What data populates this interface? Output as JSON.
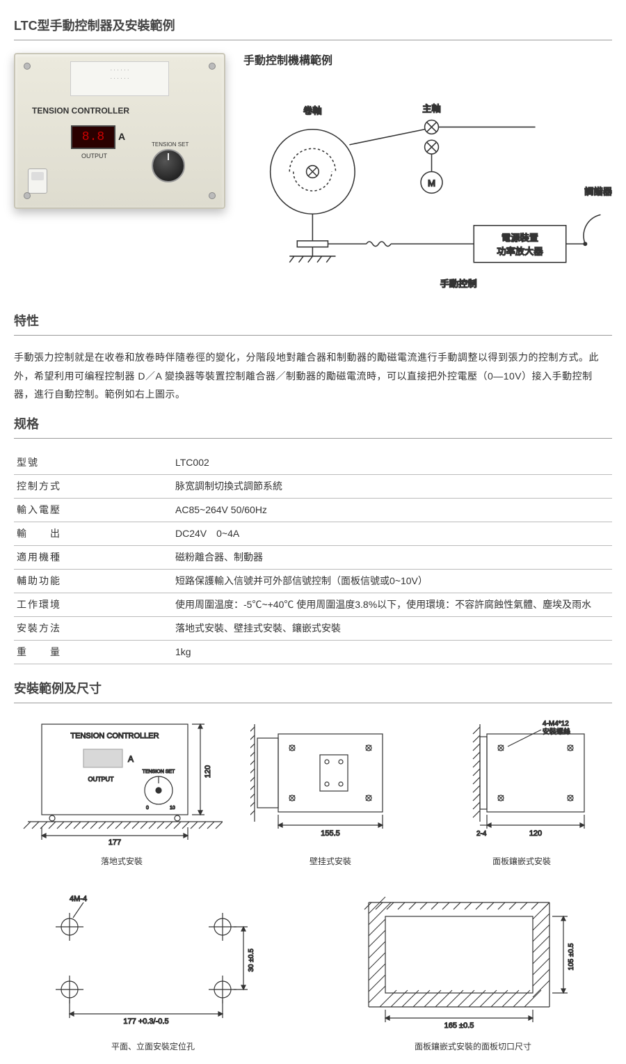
{
  "page_title": "LTC型手動控制器及安裝範例",
  "section_features": "特性",
  "section_spec": "规格",
  "section_install": "安裝範例及尺寸",
  "diagram_title": "手動控制機構範例",
  "body_text": "手動張力控制就是在收卷和放卷時伴隨卷徑的變化，分階段地對離合器和制動器的勵磁電流進行手動調整以得到張力的控制方式。此外，希望利用可编程控制器 D／A 變換器等裝置控制離合器／制動器的勵磁電流時，可以直接把外控電壓（0—10V）接入手動控制器，進行自動控制。範例如右上圖示。",
  "controller": {
    "face_title": "TENSION  CONTROLLER",
    "display": "8.8",
    "unit": "A",
    "output_label": "OUTPUT",
    "tension_set": "TENSION SET"
  },
  "diagram_labels": {
    "reel": "卷軸",
    "spindle": "主軸",
    "motor": "M",
    "tuner": "調諧器",
    "power_box_l1": "電源裝置",
    "power_box_l2": "功率放大器",
    "manual": "手動控制"
  },
  "spec_rows": [
    [
      "型號",
      "LTC002"
    ],
    [
      "控制方式",
      "脉宽調制切換式調節系統"
    ],
    [
      "輸入電壓",
      "AC85~264V 50/60Hz"
    ],
    [
      "輸　　出",
      "DC24V　0~4A"
    ],
    [
      "適用機種",
      "磁粉離合器、制動器"
    ],
    [
      "輔助功能",
      "短路保護輸入信號并可外部信號控制（面板信號或0~10V）"
    ],
    [
      "工作環境",
      "使用周圍温度：-5℃~+40℃ 使用周圍温度3.8%以下，使用環境：不容許腐蝕性氣體、塵埃及雨水"
    ],
    [
      "安裝方法",
      "落地式安裝、壁挂式安裝、鑲嵌式安裝"
    ],
    [
      "重　　量",
      "1kg"
    ]
  ],
  "install": {
    "front_title": "TENSION  CONTROLLER",
    "front_output": "OUTPUT",
    "front_tension": "TENSION SET",
    "unit": "A",
    "dim_177": "177",
    "dim_120": "120",
    "cap_floor": "落地式安裝",
    "dim_1555": "155.5",
    "cap_wall": "壁挂式安裝",
    "screw_note": "4-M4*12\n安裝螺絲",
    "dim_24": "2-4",
    "dim_120b": "120",
    "cap_panel": "面板鑲嵌式安裝",
    "hole_note": "4M-4",
    "dim_177b": "177 +0.3/-0.5",
    "dim_30": "30 ±0.5",
    "cap_holes": "平面、立面安裝定位孔",
    "dim_165": "165 ±0.5",
    "dim_105": "105 ±0.5",
    "cap_cutout": "面板鑲嵌式安裝的面板切口尺寸"
  },
  "colors": {
    "stroke": "#333333",
    "light": "#888888",
    "bg": "#ffffff"
  }
}
